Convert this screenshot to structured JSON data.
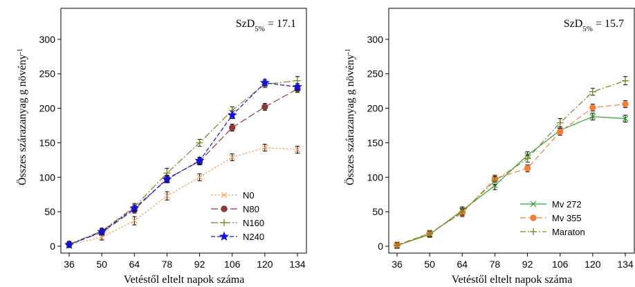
{
  "chart_data": [
    {
      "type": "line",
      "x": [
        36,
        50,
        64,
        78,
        92,
        106,
        120,
        134
      ],
      "xlabel": "Vetéstől eltelt napok száma",
      "ylabel": "Összes szárazanyag g növény",
      "ylabel_sup": "-1",
      "ylim": [
        -10,
        345
      ],
      "yticks": [
        0,
        50,
        100,
        150,
        200,
        250,
        300
      ],
      "annotation": {
        "base": "SzD",
        "sub": "5%",
        "rest": " = 17.1"
      },
      "legend_position": "bottom-right",
      "grid": false,
      "series": [
        {
          "name": "N0",
          "color": "#F4A46A",
          "dash": "3,2",
          "marker": "x",
          "values": [
            2,
            13,
            37,
            73,
            100,
            129,
            143,
            140
          ],
          "err": [
            4,
            4,
            6,
            6,
            5,
            5,
            5,
            5
          ]
        },
        {
          "name": "N80",
          "color": "#8B3A3A",
          "dash": "10,4",
          "marker": "circle",
          "values": [
            3,
            20,
            53,
            98,
            123,
            172,
            202,
            228
          ],
          "err": [
            4,
            4,
            5,
            5,
            5,
            5,
            5,
            5
          ]
        },
        {
          "name": "N160",
          "color": "#808020",
          "dash": "10,3,2,3",
          "marker": "plus",
          "values": [
            3,
            22,
            57,
            106,
            150,
            197,
            235,
            240
          ],
          "err": [
            4,
            4,
            5,
            7,
            5,
            5,
            5,
            6
          ]
        },
        {
          "name": "N240",
          "color": "#1010E0",
          "dash": "6,3",
          "marker": "star",
          "values": [
            2,
            21,
            55,
            97,
            124,
            190,
            237,
            231
          ],
          "err": [
            4,
            4,
            5,
            5,
            5,
            5,
            5,
            5
          ]
        }
      ]
    },
    {
      "type": "line",
      "x": [
        36,
        50,
        64,
        78,
        92,
        106,
        120,
        134
      ],
      "xlabel": "Vetéstől eltelt napok száma",
      "ylabel": "Összes szárazanyag g növény",
      "ylabel_sup": "-1",
      "ylim": [
        -10,
        345
      ],
      "yticks": [
        0,
        50,
        100,
        150,
        200,
        250,
        300
      ],
      "annotation": {
        "base": "SzD",
        "sub": "5%",
        "rest": " = 15.7"
      },
      "legend_position": "bottom-right",
      "grid": false,
      "series": [
        {
          "name": "Mv 272",
          "color": "#2E9E2E",
          "dash": "",
          "marker": "x",
          "values": [
            1,
            17,
            52,
            88,
            132,
            168,
            188,
            185
          ],
          "err": [
            4,
            4,
            5,
            6,
            5,
            5,
            5,
            5
          ]
        },
        {
          "name": "Mv 355",
          "color": "#F47D3A",
          "dash": "8,4",
          "marker": "circle",
          "values": [
            2,
            19,
            48,
            98,
            113,
            166,
            201,
            206
          ],
          "err": [
            4,
            4,
            5,
            5,
            5,
            5,
            5,
            5
          ]
        },
        {
          "name": "Maraton",
          "color": "#808020",
          "dash": "8,3,2,3",
          "marker": "plus",
          "values": [
            1,
            18,
            50,
            95,
            127,
            179,
            224,
            240
          ],
          "err": [
            4,
            4,
            5,
            6,
            5,
            6,
            5,
            6
          ]
        }
      ]
    }
  ]
}
